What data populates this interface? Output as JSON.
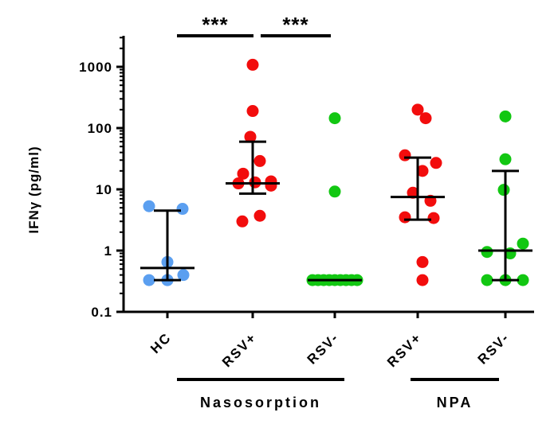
{
  "chart_data": {
    "type": "scatter",
    "ylabel": "IFNγ (pg/ml)",
    "yscale": "log",
    "ylim": [
      0.1,
      3000
    ],
    "yticks": [
      {
        "value": 0.1,
        "label": "0.1"
      },
      {
        "value": 1,
        "label": "1"
      },
      {
        "value": 10,
        "label": "10"
      },
      {
        "value": 100,
        "label": "100"
      },
      {
        "value": 1000,
        "label": "1000"
      }
    ],
    "categories": [
      "HC",
      "RSV+",
      "RSV-",
      "RSV+",
      "RSV-"
    ],
    "groups": [
      {
        "label": "Nasosorption",
        "from": 1,
        "to": 2
      },
      {
        "label": "NPA",
        "from": 3,
        "to": 4
      }
    ],
    "significance": [
      {
        "from": 0,
        "to": 1,
        "label": "***"
      },
      {
        "from": 1,
        "to": 2,
        "label": "***"
      }
    ],
    "series": [
      {
        "category": "HC",
        "color": "#5b9ff0",
        "points": [
          5.3,
          4.8,
          0.65,
          0.4,
          0.33,
          0.33,
          0.33
        ],
        "median": 0.52,
        "iqr": [
          0.33,
          4.5
        ]
      },
      {
        "category": "RSV+",
        "color": "#f20d0d",
        "points": [
          1080,
          190,
          72,
          29,
          18,
          13.5,
          13,
          12.5,
          11.5,
          3.7,
          3.0
        ],
        "median": 12.5,
        "iqr": [
          8.5,
          60
        ]
      },
      {
        "category": "RSV-",
        "color": "#12c712",
        "points": [
          145,
          9.2,
          0.33,
          0.33,
          0.33,
          0.33,
          0.33,
          0.33,
          0.33,
          0.33,
          0.33
        ],
        "median": 0.33,
        "iqr": [
          0.33,
          0.33
        ]
      },
      {
        "category": "RSV+",
        "color": "#f20d0d",
        "points": [
          200,
          145,
          36,
          27,
          20,
          8.8,
          6.5,
          3.5,
          3.4,
          0.65,
          0.33
        ],
        "median": 7.5,
        "iqr": [
          3.2,
          33
        ]
      },
      {
        "category": "RSV-",
        "color": "#12c712",
        "points": [
          155,
          31,
          9.8,
          1.3,
          0.95,
          0.9,
          0.33,
          0.33,
          0.33
        ],
        "median": 1.0,
        "iqr": [
          0.33,
          20
        ]
      }
    ]
  }
}
